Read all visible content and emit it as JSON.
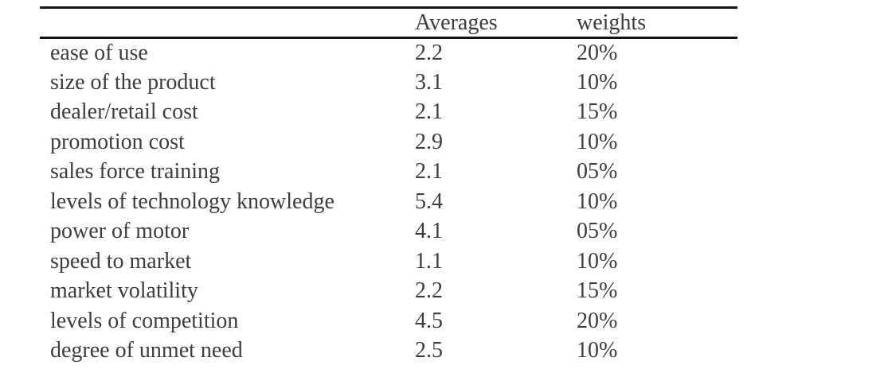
{
  "table": {
    "columns": {
      "label": "",
      "averages": "Averages",
      "weights": "weights"
    },
    "rows": [
      {
        "label": "ease of use",
        "average": "2.2",
        "weight": "20%"
      },
      {
        "label": "size of the product",
        "average": "3.1",
        "weight": "10%"
      },
      {
        "label": "dealer/retail cost",
        "average": "2.1",
        "weight": "15%"
      },
      {
        "label": "promotion cost",
        "average": "2.9",
        "weight": "10%"
      },
      {
        "label": "sales force training",
        "average": "2.1",
        "weight": "05%"
      },
      {
        "label": "levels of technology knowledge",
        "average": "5.4",
        "weight": "10%"
      },
      {
        "label": "power of motor",
        "average": "4.1",
        "weight": "05%"
      },
      {
        "label": "speed to market",
        "average": "1.1",
        "weight": "10%"
      },
      {
        "label": "market volatility",
        "average": "2.2",
        "weight": "15%"
      },
      {
        "label": "levels of competition",
        "average": "4.5",
        "weight": "20%"
      },
      {
        "label": "degree of unmet need",
        "average": "2.5",
        "weight": "10%"
      }
    ],
    "colors": {
      "text": "#3d3d3d",
      "rule": "#141414",
      "background": "#ffffff"
    }
  }
}
